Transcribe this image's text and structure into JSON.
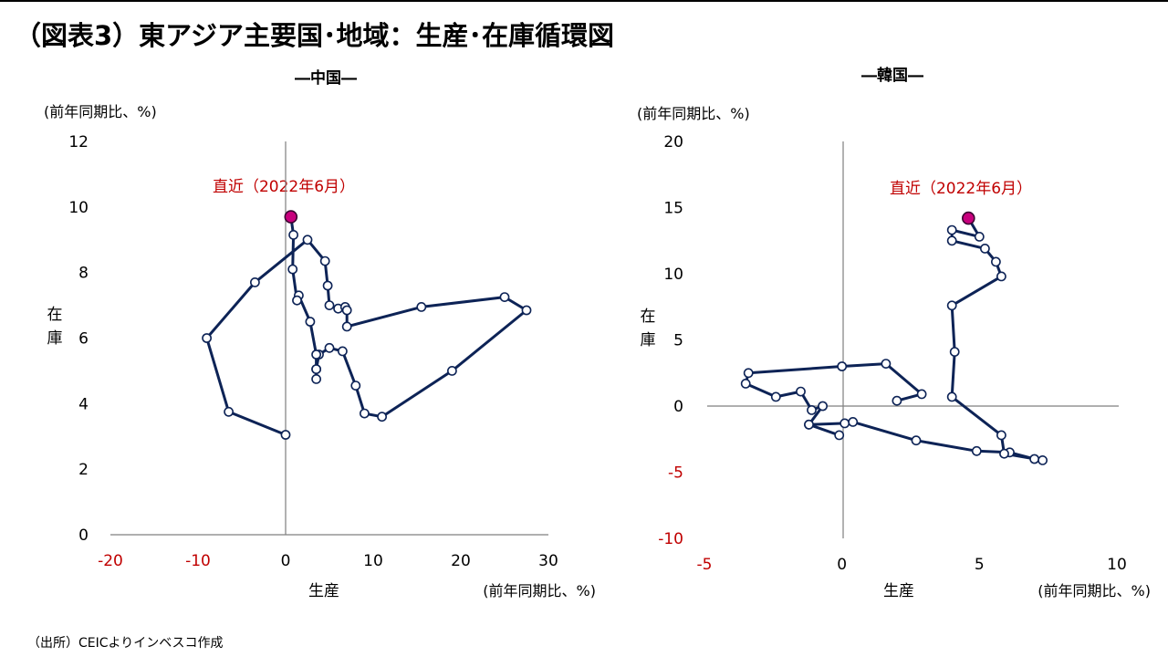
{
  "figure": {
    "title": "（図表3）東アジア主要国･地域：生産･在庫循環図",
    "source": "（出所）CEICよりインベスコ作成"
  },
  "chart_data": [
    {
      "type": "line",
      "title": "―中国―",
      "ylabel_unit": "(前年同期比、%)",
      "ylabel": "在庫",
      "xlabel": "生産",
      "xlabel_unit": "(前年同期比、%)",
      "annotation": "直近（2022年6月）",
      "xlim": [
        -20,
        30
      ],
      "ylim": [
        0,
        12
      ],
      "x_ticks": [
        "-20",
        "-10",
        "0",
        "10",
        "20",
        "30"
      ],
      "y_ticks": [
        "0",
        "2",
        "4",
        "6",
        "8",
        "10",
        "12"
      ],
      "negative_tick_color": "#c00000",
      "annotation_color": "#c00000",
      "line_color": "#0d2356",
      "latest_color": "#c8007d",
      "points": [
        [
          0,
          3.05
        ],
        [
          -6.5,
          3.75
        ],
        [
          -9,
          6.0
        ],
        [
          -3.5,
          7.7
        ],
        [
          2.5,
          9.0
        ],
        [
          4.5,
          8.35
        ],
        [
          4.8,
          7.6
        ],
        [
          5.0,
          7.0
        ],
        [
          6.0,
          6.9
        ],
        [
          6.8,
          6.95
        ],
        [
          7.0,
          6.85
        ],
        [
          7.0,
          6.35
        ],
        [
          15.5,
          6.95
        ],
        [
          25.0,
          7.25
        ],
        [
          27.5,
          6.85
        ],
        [
          19.0,
          5.0
        ],
        [
          11.0,
          3.6
        ],
        [
          9.0,
          3.7
        ],
        [
          8.0,
          4.55
        ],
        [
          6.5,
          5.6
        ],
        [
          5.0,
          5.7
        ],
        [
          3.8,
          5.5
        ],
        [
          3.5,
          5.05
        ],
        [
          3.5,
          4.75
        ],
        [
          3.5,
          5.05
        ],
        [
          3.5,
          5.5
        ],
        [
          2.8,
          6.5
        ],
        [
          1.5,
          7.3
        ],
        [
          1.3,
          7.15
        ],
        [
          0.8,
          8.1
        ],
        [
          0.9,
          9.15
        ],
        [
          0.6,
          9.7
        ]
      ]
    },
    {
      "type": "line",
      "title": "―韓国―",
      "ylabel_unit": "(前年同期比、%)",
      "ylabel": "在庫",
      "xlabel": "生産",
      "xlabel_unit": "(前年同期比、%)",
      "annotation": "直近（2022年6月）",
      "xlim": [
        -5,
        10
      ],
      "ylim": [
        -10,
        20
      ],
      "x_ticks": [
        "-5",
        "0",
        "5",
        "10"
      ],
      "y_ticks": [
        "-10",
        "-5",
        "0",
        "5",
        "10",
        "15",
        "20"
      ],
      "negative_tick_color": "#c00000",
      "annotation_color": "#c00000",
      "line_color": "#0d2356",
      "latest_color": "#c8007d",
      "points": [
        [
          2.0,
          0.4
        ],
        [
          2.9,
          0.9
        ],
        [
          1.6,
          3.2
        ],
        [
          0.0,
          3.0
        ],
        [
          -3.4,
          2.5
        ],
        [
          -3.5,
          1.7
        ],
        [
          -2.4,
          0.7
        ],
        [
          -1.5,
          1.1
        ],
        [
          -1.1,
          -0.3
        ],
        [
          -0.7,
          0.0
        ],
        [
          -1.2,
          -1.4
        ],
        [
          -0.1,
          -2.2
        ],
        [
          -1.2,
          -1.4
        ],
        [
          0.1,
          -1.3
        ],
        [
          0.4,
          -1.2
        ],
        [
          2.7,
          -2.6
        ],
        [
          4.9,
          -3.4
        ],
        [
          6.1,
          -3.5
        ],
        [
          7.0,
          -4.0
        ],
        [
          7.3,
          -4.1
        ],
        [
          5.9,
          -3.6
        ],
        [
          5.8,
          -2.2
        ],
        [
          4.0,
          0.7
        ],
        [
          4.1,
          4.1
        ],
        [
          4.0,
          7.6
        ],
        [
          5.8,
          9.8
        ],
        [
          5.6,
          10.9
        ],
        [
          5.2,
          11.9
        ],
        [
          4.0,
          12.5
        ],
        [
          4.0,
          13.3
        ],
        [
          5.0,
          12.8
        ],
        [
          4.6,
          14.2
        ]
      ]
    }
  ]
}
